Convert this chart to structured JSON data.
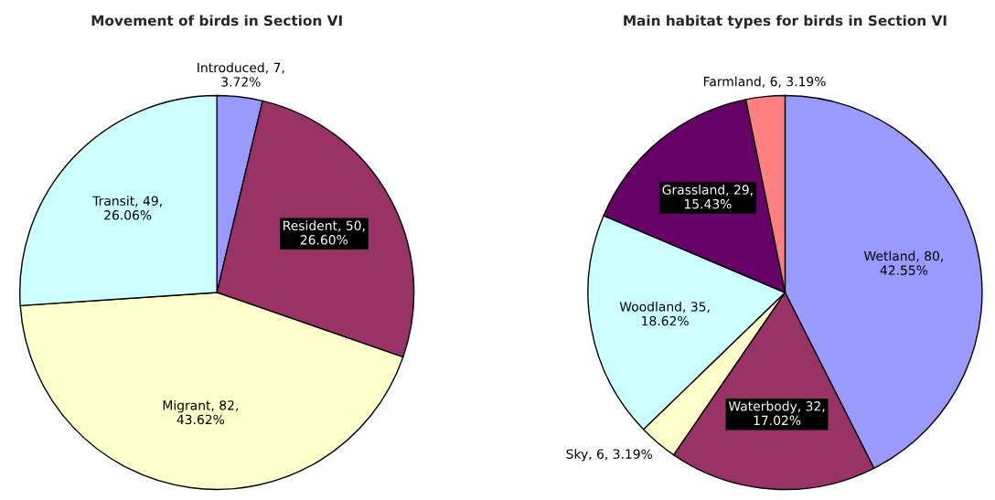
{
  "chart_data": [
    {
      "type": "pie",
      "title": "Movement of birds in Section VI",
      "categories": [
        "Introduced",
        "Resident",
        "Migrant",
        "Transit"
      ],
      "values": [
        3.72,
        26.6,
        43.62,
        26.06
      ],
      "value_labels": [
        "7, 3.72%",
        "50, 26.60%",
        "82, 43.62%",
        "49, 26.06%"
      ],
      "colors": [
        "#9999ff",
        "#993366",
        "#ffffcc",
        "#ccffff"
      ]
    },
    {
      "type": "pie",
      "title": "Main habitat types for birds in Section VI",
      "categories": [
        "Wetland",
        "Waterbody",
        "Sky",
        "Woodland",
        "Grassland",
        "Farmland"
      ],
      "values": [
        42.55,
        17.02,
        3.19,
        18.62,
        15.43,
        3.19
      ],
      "value_labels": [
        "80, 42.55%",
        "32, 17.02%",
        "6, 3.19%",
        "35, 18.62%",
        "29, 15.43%",
        "6, 3.19%"
      ],
      "colors": [
        "#9999ff",
        "#993366",
        "#ffffcc",
        "#ccffff",
        "#660066",
        "#ff8080"
      ]
    }
  ]
}
